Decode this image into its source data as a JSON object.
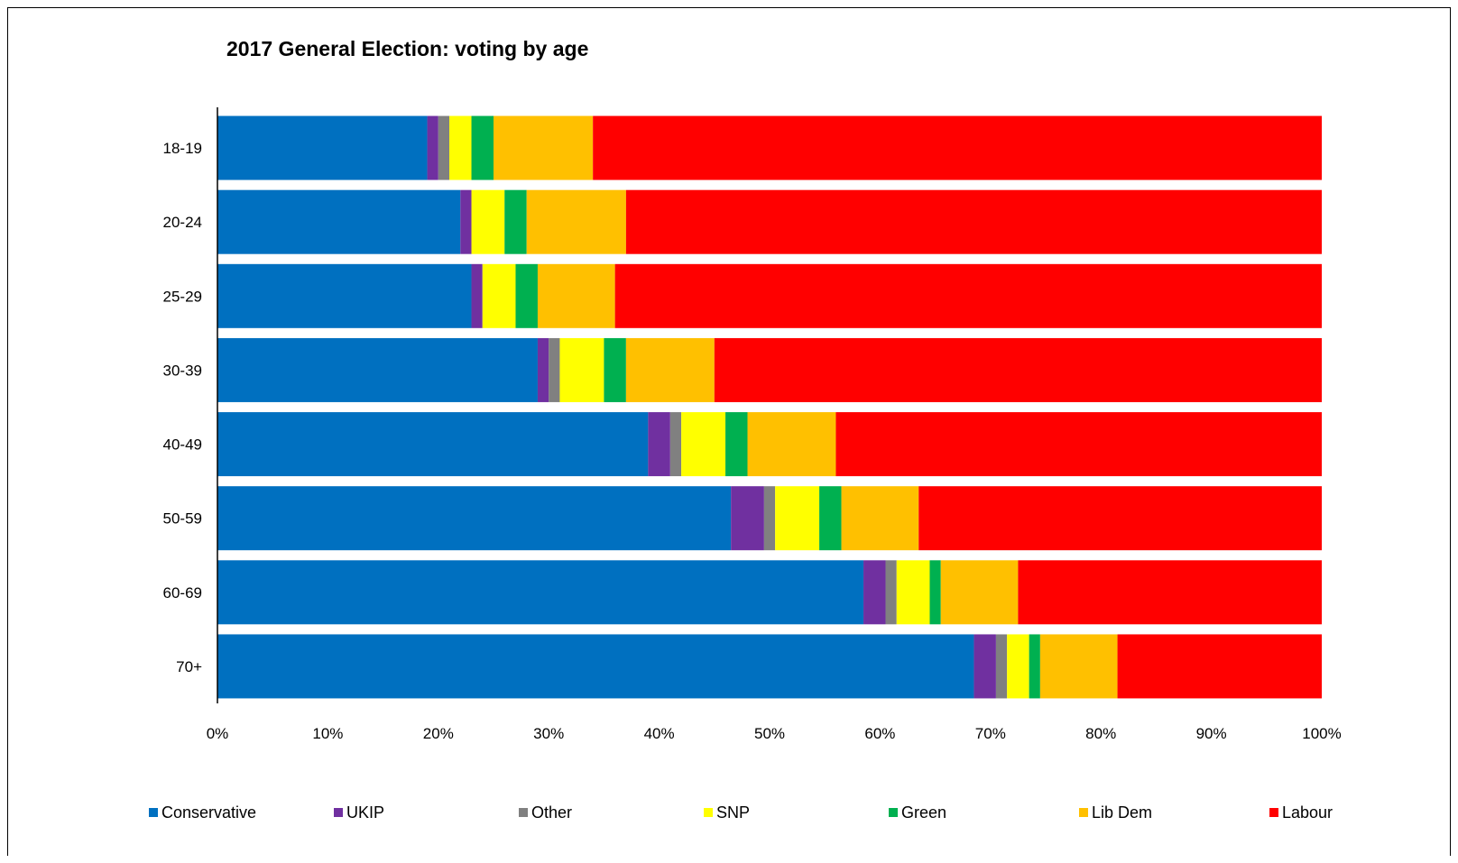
{
  "chart_data": {
    "type": "bar",
    "orientation": "horizontal",
    "stacking": "percent",
    "title": "2017 General Election: voting by age",
    "xlabel": "",
    "ylabel": "",
    "xlim": [
      0,
      100
    ],
    "x_ticks": [
      "0%",
      "10%",
      "20%",
      "30%",
      "40%",
      "50%",
      "60%",
      "70%",
      "80%",
      "90%",
      "100%"
    ],
    "grid": false,
    "legend_position": "bottom",
    "categories": [
      "18-19",
      "20-24",
      "25-29",
      "30-39",
      "40-49",
      "50-59",
      "60-69",
      "70+"
    ],
    "series": [
      {
        "name": "Conservative",
        "color": "#0070C0",
        "values": [
          19,
          22,
          23,
          29,
          39,
          46.5,
          58.5,
          68.5
        ]
      },
      {
        "name": "UKIP",
        "color": "#7030A0",
        "values": [
          1,
          1,
          1,
          1,
          2,
          3,
          2,
          2
        ]
      },
      {
        "name": "Other",
        "color": "#808080",
        "values": [
          1,
          0,
          0,
          1,
          1,
          1,
          1,
          1
        ]
      },
      {
        "name": "SNP",
        "color": "#FFFF00",
        "values": [
          2,
          3,
          3,
          4,
          4,
          4,
          3,
          2
        ]
      },
      {
        "name": "Green",
        "color": "#00B050",
        "values": [
          2,
          2,
          2,
          2,
          2,
          2,
          1,
          1
        ]
      },
      {
        "name": "Lib Dem",
        "color": "#FFC000",
        "values": [
          9,
          9,
          7,
          8,
          8,
          7,
          7,
          7
        ]
      },
      {
        "name": "Labour",
        "color": "#FF0000",
        "values": [
          66,
          63,
          64,
          55,
          44,
          36.5,
          27.5,
          18.5
        ]
      }
    ]
  }
}
